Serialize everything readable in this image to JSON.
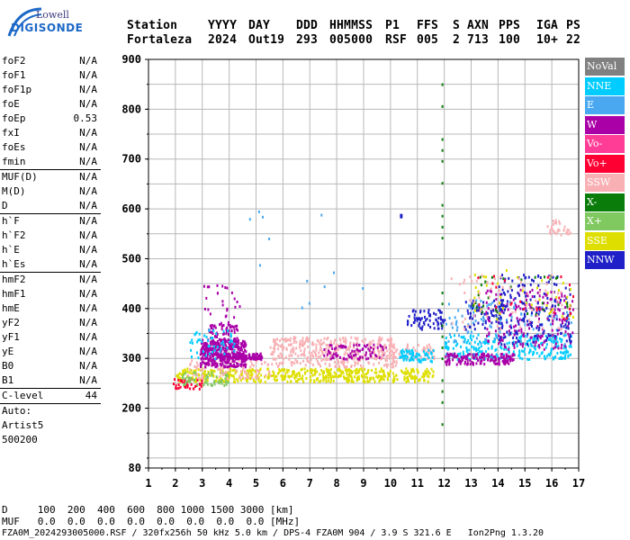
{
  "logo": {
    "line1": "Lowell",
    "line2": "DIGISONDE"
  },
  "header": {
    "labels": [
      "Station",
      "YYYY",
      "DAY",
      "DDD",
      "HHMMSS",
      "P1",
      "FFS",
      "S",
      "AXN",
      "PPS",
      "IGA",
      "PS"
    ],
    "values": [
      "Fortaleza",
      "2024",
      "Out19",
      "293",
      "005000",
      "RSF",
      "005",
      "2",
      "713",
      "100",
      "10+",
      "22"
    ]
  },
  "params_group1": [
    {
      "name": "foF2",
      "value": "N/A"
    },
    {
      "name": "foF1",
      "value": "N/A"
    },
    {
      "name": "foF1p",
      "value": "N/A"
    },
    {
      "name": "foE",
      "value": "N/A"
    },
    {
      "name": "foEp",
      "value": "0.53"
    },
    {
      "name": "fxI",
      "value": "N/A"
    },
    {
      "name": "foEs",
      "value": "N/A"
    },
    {
      "name": "fmin",
      "value": "N/A"
    }
  ],
  "params_group2": [
    {
      "name": "MUF(D)",
      "value": "N/A"
    },
    {
      "name": "M(D)",
      "value": "N/A"
    },
    {
      "name": "D",
      "value": "N/A"
    }
  ],
  "params_group3": [
    {
      "name": "h`F",
      "value": "N/A"
    },
    {
      "name": "h`F2",
      "value": "N/A"
    },
    {
      "name": "h`E",
      "value": "N/A"
    },
    {
      "name": "h`Es",
      "value": "N/A"
    }
  ],
  "params_group4": [
    {
      "name": "hmF2",
      "value": "N/A"
    },
    {
      "name": "hmF1",
      "value": "N/A"
    },
    {
      "name": "hmE",
      "value": "N/A"
    },
    {
      "name": "yF2",
      "value": "N/A"
    },
    {
      "name": "yF1",
      "value": "N/A"
    },
    {
      "name": "yE",
      "value": "N/A"
    },
    {
      "name": "B0",
      "value": "N/A"
    },
    {
      "name": "B1",
      "value": "N/A"
    }
  ],
  "clevel": {
    "name": "C-level",
    "value": "44"
  },
  "auto": [
    "Auto:",
    "Artist5",
    "500200"
  ],
  "plot": {
    "x_ticks": [
      "1",
      "2",
      "3",
      "4",
      "5",
      "6",
      "7",
      "8",
      "9",
      "10",
      "11",
      "12",
      "13",
      "14",
      "15",
      "16",
      "17"
    ],
    "y_ticks": [
      "80",
      "200",
      "300",
      "400",
      "500",
      "600",
      "700",
      "800",
      "900"
    ],
    "xlim": [
      1,
      17
    ],
    "ylim": [
      80,
      900
    ]
  },
  "legend": [
    {
      "label": "NoVal",
      "color": "#808080"
    },
    {
      "label": "NNE",
      "color": "#00ccff"
    },
    {
      "label": "E",
      "color": "#4aa8f0"
    },
    {
      "label": "W",
      "color": "#aa00a8"
    },
    {
      "label": "Vo-",
      "color": "#ff3c96"
    },
    {
      "label": "Vo+",
      "color": "#ff0033"
    },
    {
      "label": "SSW",
      "color": "#f8b0b4"
    },
    {
      "label": "X-",
      "color": "#0a7c0a"
    },
    {
      "label": "X+",
      "color": "#80c860"
    },
    {
      "label": "SSE",
      "color": "#dede00"
    },
    {
      "label": "NNW",
      "color": "#2020c8"
    }
  ],
  "bottom": {
    "d_line": "D     100  200  400  600  800 1000 1500 3000 [km]",
    "muf_line": "MUF   0.0  0.0  0.0  0.0  0.0  0.0  0.0  0.0 [MHz]",
    "file_line": "FZA0M_2024293005000.RSF / 320fx256h 50 kHz 5.0 km / DPS-4 FZA0M 904 / 3.9 S 321.6 E   Ion2Png 1.3.20"
  }
}
